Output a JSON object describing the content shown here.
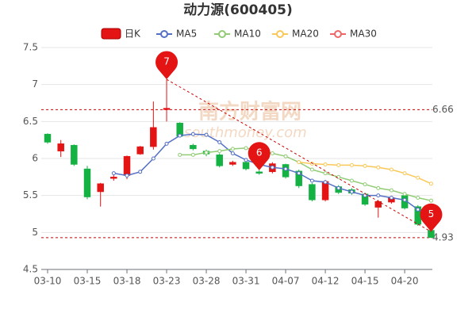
{
  "chart_data": {
    "type": "candlestick",
    "title": "动力源(600405)",
    "watermark": [
      "南方财富网",
      "southmoney.com"
    ],
    "categories": [
      "03-10",
      null,
      null,
      "03-15",
      null,
      null,
      "03-18",
      null,
      null,
      "03-23",
      null,
      null,
      "03-28",
      null,
      null,
      "03-31",
      null,
      null,
      "04-07",
      null,
      null,
      "04-12",
      null,
      null,
      "04-15",
      null,
      null,
      "04-20",
      null,
      null
    ],
    "candles": {
      "name": "日K",
      "up_color": "#e41414",
      "down_color": "#14b143",
      "open": [
        6.33,
        6.1,
        6.18,
        5.86,
        5.55,
        5.73,
        5.77,
        6.06,
        6.16,
        6.66,
        6.48,
        6.18,
        6.1,
        6.05,
        5.92,
        5.95,
        5.82,
        5.82,
        5.92,
        5.83,
        5.65,
        5.44,
        5.62,
        5.58,
        5.52,
        5.34,
        5.41,
        5.5,
        5.35,
        5.03
      ],
      "close": [
        6.22,
        6.2,
        5.92,
        5.48,
        5.66,
        5.75,
        6.03,
        6.16,
        6.42,
        6.68,
        6.3,
        6.13,
        6.06,
        5.9,
        5.95,
        5.86,
        5.8,
        5.93,
        5.75,
        5.63,
        5.44,
        5.69,
        5.54,
        5.53,
        5.38,
        5.42,
        5.47,
        5.33,
        5.11,
        4.93
      ],
      "high": [
        6.34,
        6.25,
        6.19,
        5.9,
        5.67,
        5.78,
        6.04,
        6.17,
        6.77,
        7.07,
        6.49,
        6.2,
        6.12,
        6.07,
        5.97,
        5.97,
        5.84,
        5.95,
        5.93,
        5.85,
        5.67,
        5.71,
        5.64,
        5.6,
        5.54,
        5.44,
        5.49,
        5.52,
        5.37,
        5.05
      ],
      "low": [
        6.2,
        6.02,
        5.9,
        5.45,
        5.35,
        5.7,
        5.72,
        6.05,
        6.12,
        6.5,
        6.29,
        6.11,
        6.03,
        5.88,
        5.9,
        5.84,
        5.78,
        5.8,
        5.73,
        5.6,
        5.42,
        5.42,
        5.52,
        5.51,
        5.36,
        5.2,
        5.39,
        5.31,
        5.09,
        4.93
      ]
    },
    "series": [
      {
        "name": "MA5",
        "color": "#5470c6",
        "values": [
          null,
          null,
          null,
          null,
          null,
          5.8,
          5.77,
          5.82,
          6.0,
          6.2,
          6.31,
          6.33,
          6.32,
          6.22,
          6.07,
          5.98,
          5.92,
          5.88,
          5.86,
          5.8,
          5.7,
          5.68,
          5.6,
          5.55,
          5.5,
          5.5,
          5.47,
          5.44,
          5.31,
          5.2
        ]
      },
      {
        "name": "MA10",
        "color": "#91cc75",
        "values": [
          null,
          null,
          null,
          null,
          null,
          null,
          null,
          null,
          null,
          null,
          6.05,
          6.05,
          6.08,
          6.1,
          6.13,
          6.14,
          6.1,
          6.07,
          6.03,
          5.95,
          5.85,
          5.8,
          5.75,
          5.7,
          5.65,
          5.6,
          5.57,
          5.52,
          5.47,
          5.43
        ]
      },
      {
        "name": "MA20",
        "color": "#fac858",
        "values": [
          null,
          null,
          null,
          null,
          null,
          null,
          null,
          null,
          null,
          null,
          null,
          null,
          null,
          null,
          null,
          null,
          null,
          null,
          null,
          5.95,
          5.93,
          5.92,
          5.91,
          5.91,
          5.9,
          5.88,
          5.85,
          5.8,
          5.74,
          5.66
        ]
      },
      {
        "name": "MA30",
        "color": "#ee6666",
        "values": [
          null,
          null,
          null,
          null,
          null,
          null,
          null,
          null,
          null,
          null,
          null,
          null,
          null,
          null,
          null,
          null,
          null,
          null,
          null,
          null,
          null,
          null,
          null,
          null,
          null,
          null,
          null,
          null,
          null,
          null
        ]
      }
    ],
    "markers": [
      {
        "at": 9,
        "value": 7.07,
        "label": "7"
      },
      {
        "at": 16,
        "value": 5.84,
        "label": "6"
      },
      {
        "at": 29,
        "value": 5.01,
        "label": "5"
      }
    ],
    "reference_lines": [
      {
        "value": 6.66,
        "label": "6.66"
      },
      {
        "value": 4.93,
        "label": "4.93"
      }
    ],
    "ylim": [
      4.5,
      7.5
    ],
    "yticks": [
      4.5,
      5,
      5.5,
      6,
      6.5,
      7,
      7.5
    ],
    "grid": true
  }
}
